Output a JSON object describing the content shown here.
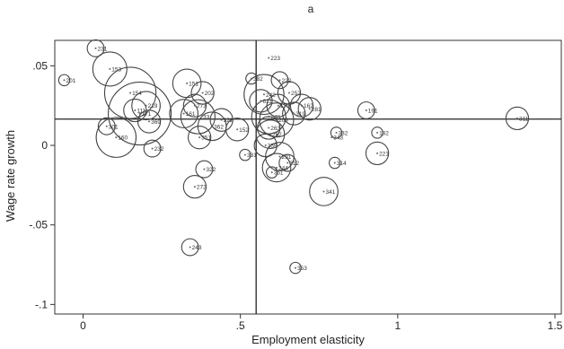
{
  "chart_data": {
    "type": "scatter",
    "title": "a",
    "xlabel": "Employment elasticity",
    "ylabel": "Wage rate growth",
    "xlim": [
      -0.09,
      1.52
    ],
    "ylim": [
      -0.106,
      0.066
    ],
    "xticks": [
      0,
      0.5,
      1,
      1.5
    ],
    "xtick_labels": [
      "0",
      ".5",
      "1",
      "1.5"
    ],
    "yticks": [
      0.05,
      0,
      -0.05,
      -0.1
    ],
    "ytick_labels": [
      ".05",
      "0",
      "-.05",
      "-.1"
    ],
    "reference_lines": {
      "x": 0.55,
      "y": 0.0165
    },
    "grid": false,
    "marker": "hollow circle sized by weight",
    "points": [
      {
        "label": "231",
        "x": 0.04,
        "y": 0.061,
        "size": 2
      },
      {
        "label": "153",
        "x": 0.085,
        "y": 0.048,
        "size": 5
      },
      {
        "label": "201",
        "x": -0.06,
        "y": 0.041,
        "size": 1
      },
      {
        "label": "154",
        "x": 0.15,
        "y": 0.033,
        "size": 8
      },
      {
        "label": "151",
        "x": 0.33,
        "y": 0.039,
        "size": 4
      },
      {
        "label": "202",
        "x": 0.38,
        "y": 0.033,
        "size": 3
      },
      {
        "label": "223",
        "x": 0.59,
        "y": 0.055,
        "size": 0
      },
      {
        "label": "222",
        "x": 0.625,
        "y": 0.041,
        "size": 2
      },
      {
        "label": "242",
        "x": 0.575,
        "y": 0.032,
        "size": 6
      },
      {
        "label": "252",
        "x": 0.655,
        "y": 0.033,
        "size": 3
      },
      {
        "label": "162",
        "x": 0.695,
        "y": 0.025,
        "size": 3
      },
      {
        "label": "281",
        "x": 0.72,
        "y": 0.023,
        "size": 3
      },
      {
        "label": "332",
        "x": 0.535,
        "y": 0.042,
        "size": 1
      },
      {
        "label": "219",
        "x": 0.2,
        "y": 0.025,
        "size": 4
      },
      {
        "label": "273",
        "x": 0.355,
        "y": 0.025,
        "size": 3
      },
      {
        "label": "111",
        "x": 0.165,
        "y": 0.022,
        "size": 3
      },
      {
        "label": "171",
        "x": 0.18,
        "y": 0.02,
        "size": 10
      },
      {
        "label": "161",
        "x": 0.32,
        "y": 0.02,
        "size": 4
      },
      {
        "label": "233",
        "x": 0.365,
        "y": 0.018,
        "size": 5
      },
      {
        "label": "369",
        "x": 0.21,
        "y": 0.015,
        "size": 3
      },
      {
        "label": "301",
        "x": 0.075,
        "y": 0.012,
        "size": 2
      },
      {
        "label": "362",
        "x": 0.41,
        "y": 0.012,
        "size": 4
      },
      {
        "label": "322",
        "x": 0.44,
        "y": 0.016,
        "size": 3
      },
      {
        "label": "152",
        "x": 0.49,
        "y": 0.01,
        "size": 3
      },
      {
        "label": "160",
        "x": 0.105,
        "y": 0.005,
        "size": 6
      },
      {
        "label": "232",
        "x": 0.22,
        "y": -0.002,
        "size": 2
      },
      {
        "label": "351",
        "x": 0.37,
        "y": 0.005,
        "size": 3
      },
      {
        "label": "611",
        "x": 0.565,
        "y": 0.028,
        "size": 3
      },
      {
        "label": "173",
        "x": 0.62,
        "y": 0.025,
        "size": 3
      },
      {
        "label": "319",
        "x": 0.67,
        "y": 0.02,
        "size": 3
      },
      {
        "label": "248",
        "x": 0.59,
        "y": 0.018,
        "size": 5
      },
      {
        "label": "209",
        "x": 0.615,
        "y": 0.016,
        "size": 5
      },
      {
        "label": "263",
        "x": 0.59,
        "y": 0.011,
        "size": 3
      },
      {
        "label": "262",
        "x": 0.595,
        "y": 0.007,
        "size": 4
      },
      {
        "label": "359",
        "x": 0.58,
        "y": 0.0,
        "size": 3
      },
      {
        "label": "331",
        "x": 0.515,
        "y": -0.006,
        "size": 1
      },
      {
        "label": "291",
        "x": 0.625,
        "y": -0.007,
        "size": 4
      },
      {
        "label": "312",
        "x": 0.65,
        "y": -0.011,
        "size": 2
      },
      {
        "label": "244",
        "x": 0.615,
        "y": -0.014,
        "size": 4
      },
      {
        "label": "361",
        "x": 0.6,
        "y": -0.017,
        "size": 1
      },
      {
        "label": "191",
        "x": 0.9,
        "y": 0.022,
        "size": 2
      },
      {
        "label": "311",
        "x": 1.38,
        "y": 0.017,
        "size": 3
      },
      {
        "label": "332",
        "x": 0.805,
        "y": 0.008,
        "size": 1
      },
      {
        "label": "343",
        "x": 0.79,
        "y": 0.005,
        "size": 0
      },
      {
        "label": "182",
        "x": 0.935,
        "y": 0.008,
        "size": 1
      },
      {
        "label": "221",
        "x": 0.935,
        "y": -0.005,
        "size": 3
      },
      {
        "label": "314",
        "x": 0.8,
        "y": -0.011,
        "size": 1
      },
      {
        "label": "341",
        "x": 0.765,
        "y": -0.029,
        "size": 4
      },
      {
        "label": "322",
        "x": 0.385,
        "y": -0.015,
        "size": 2
      },
      {
        "label": "272",
        "x": 0.355,
        "y": -0.026,
        "size": 3
      },
      {
        "label": "243",
        "x": 0.34,
        "y": -0.064,
        "size": 2
      },
      {
        "label": "353",
        "x": 0.675,
        "y": -0.077,
        "size": 1
      }
    ]
  }
}
